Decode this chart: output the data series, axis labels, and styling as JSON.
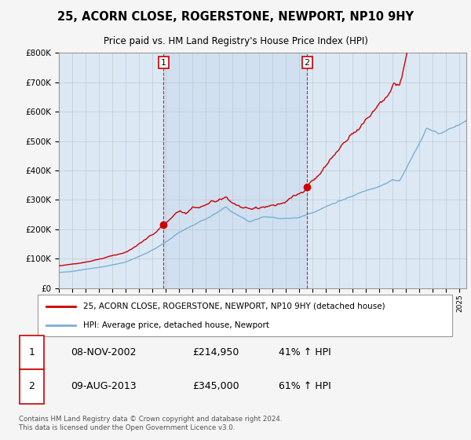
{
  "title": "25, ACORN CLOSE, ROGERSTONE, NEWPORT, NP10 9HY",
  "subtitle": "Price paid vs. HM Land Registry's House Price Index (HPI)",
  "ylabel_ticks": [
    "£0",
    "£100K",
    "£200K",
    "£300K",
    "£400K",
    "£500K",
    "£600K",
    "£700K",
    "£800K"
  ],
  "ylim": [
    0,
    800000
  ],
  "xlim_start": 1995.0,
  "xlim_end": 2025.5,
  "sale1_date": 2002.84,
  "sale1_label": "1",
  "sale1_price": 214950,
  "sale2_date": 2013.58,
  "sale2_label": "2",
  "sale2_price": 345000,
  "legend_line1": "25, ACORN CLOSE, ROGERSTONE, NEWPORT, NP10 9HY (detached house)",
  "legend_line2": "HPI: Average price, detached house, Newport",
  "footer": "Contains HM Land Registry data © Crown copyright and database right 2024.\nThis data is licensed under the Open Government Licence v3.0.",
  "hpi_color": "#7bafd4",
  "price_color": "#cc0000",
  "bg_color": "#dce9f5",
  "shade_color": "#c5d8ee",
  "grid_color": "#c0c8d0",
  "fig_bg": "#f5f5f5"
}
